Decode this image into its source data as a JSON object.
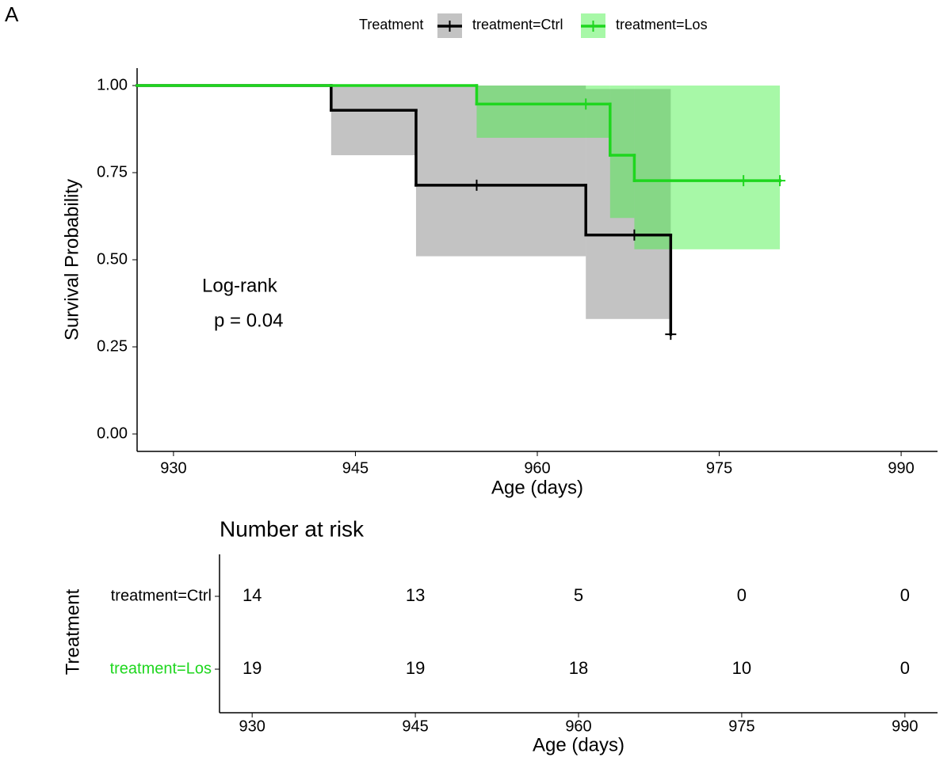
{
  "panel_label": "A",
  "chart_data": [
    {
      "type": "survival",
      "y_label": "Survival Probability",
      "x_label": "Age (days)",
      "legend_title": "Treatment",
      "legend_position": "top",
      "annotations": [
        "Log-rank",
        "p = 0.04"
      ],
      "xlim": [
        927,
        993
      ],
      "xticks": [
        930,
        945,
        960,
        975,
        990
      ],
      "ylim": [
        -0.05,
        1.05
      ],
      "yticks": [
        {
          "value": 0,
          "label": "0.00"
        },
        {
          "value": 0.25,
          "label": "0.25"
        },
        {
          "value": 0.5,
          "label": "0.50"
        },
        {
          "value": 0.75,
          "label": "0.75"
        },
        {
          "value": 1,
          "label": "1.00"
        }
      ],
      "series": [
        {
          "name": "treatment=Ctrl",
          "color": "#000000",
          "band_color": "#7a7a7a",
          "x": [
            927,
            943,
            950,
            964,
            971
          ],
          "values": [
            1,
            0.929,
            0.714,
            0.571,
            0.286
          ],
          "lower": [
            1,
            0.8,
            0.51,
            0.33,
            null
          ],
          "upper": [
            1,
            1,
            1,
            0.99,
            null
          ],
          "censor_x": [
            955,
            968,
            971
          ],
          "censor_values": [
            0.714,
            0.571,
            0.286
          ]
        },
        {
          "name": "treatment=Los",
          "color": "#1ed61e",
          "band_color": "#3bef3b",
          "x": [
            927,
            955,
            966,
            968,
            980
          ],
          "values": [
            1,
            0.947,
            0.8,
            0.727,
            0.727
          ],
          "lower": [
            1,
            0.85,
            0.62,
            0.53,
            null
          ],
          "upper": [
            1,
            1,
            1,
            1,
            null
          ],
          "censor_x": [
            964,
            977,
            980
          ],
          "censor_values": [
            0.947,
            0.727,
            0.727
          ]
        }
      ]
    },
    {
      "type": "risk-table",
      "title": "Number at risk",
      "y_label": "Treatment",
      "x_label": "Age (days)",
      "xlim": [
        927,
        993
      ],
      "xticks": [
        930,
        945,
        960,
        975,
        990
      ],
      "series": [
        {
          "name": "treatment=Ctrl",
          "color": "#000000",
          "values": [
            14,
            13,
            5,
            0,
            0
          ]
        },
        {
          "name": "treatment=Los",
          "color": "#1ed61e",
          "values": [
            19,
            19,
            18,
            10,
            0
          ]
        }
      ]
    }
  ]
}
